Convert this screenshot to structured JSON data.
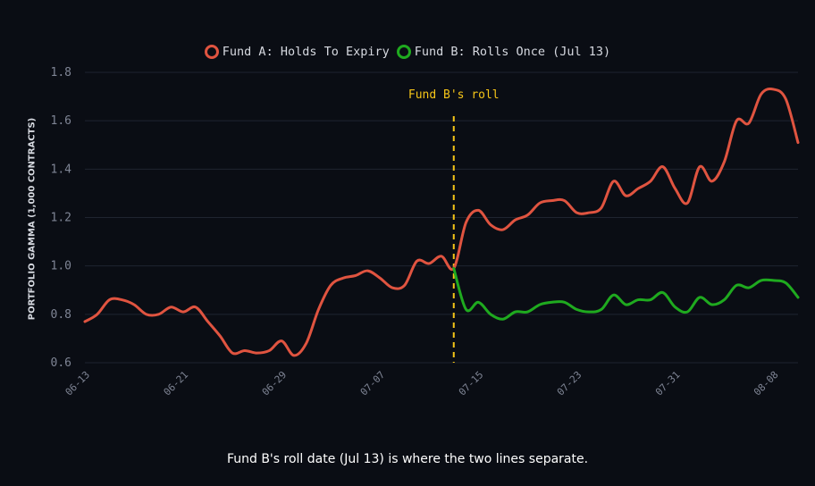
{
  "chart_data": {
    "type": "line",
    "xlabel": "",
    "ylabel": "PORTFOLIO GAMMA (1,000 CONTRACTS)",
    "ylim": [
      0.6,
      1.8
    ],
    "yticks": [
      "0.6",
      "0.8",
      "1.0",
      "1.2",
      "1.4",
      "1.6",
      "1.8"
    ],
    "x_range": [
      "06-13",
      "08-10"
    ],
    "x_tick_labels": [
      "06-13",
      "06-21",
      "06-29",
      "07-07",
      "07-15",
      "07-23",
      "07-31",
      "08-08"
    ],
    "grid": "horizontal",
    "legend_position": "top-center",
    "annotation": {
      "text": "Fund B's roll",
      "x": "07-13",
      "color": "#f5c518"
    },
    "series": [
      {
        "name": "Fund A: Holds To Expiry",
        "color": "#e05440",
        "x": [
          "06-13",
          "06-14",
          "06-15",
          "06-16",
          "06-17",
          "06-18",
          "06-19",
          "06-20",
          "06-21",
          "06-22",
          "06-23",
          "06-24",
          "06-25",
          "06-26",
          "06-27",
          "06-28",
          "06-29",
          "06-30",
          "07-01",
          "07-02",
          "07-03",
          "07-04",
          "07-05",
          "07-06",
          "07-07",
          "07-08",
          "07-09",
          "07-10",
          "07-11",
          "07-12",
          "07-13",
          "07-14",
          "07-15",
          "07-16",
          "07-17",
          "07-18",
          "07-19",
          "07-20",
          "07-21",
          "07-22",
          "07-23",
          "07-24",
          "07-25",
          "07-26",
          "07-27",
          "07-28",
          "07-29",
          "07-30",
          "07-31",
          "08-01",
          "08-02",
          "08-03",
          "08-04",
          "08-05",
          "08-06",
          "08-07",
          "08-08",
          "08-09",
          "08-10"
        ],
        "values": [
          0.77,
          0.8,
          0.86,
          0.86,
          0.84,
          0.8,
          0.8,
          0.83,
          0.81,
          0.83,
          0.77,
          0.71,
          0.64,
          0.65,
          0.64,
          0.65,
          0.69,
          0.63,
          0.68,
          0.82,
          0.92,
          0.95,
          0.96,
          0.98,
          0.95,
          0.91,
          0.92,
          1.02,
          1.01,
          1.04,
          0.99,
          1.18,
          1.23,
          1.17,
          1.15,
          1.19,
          1.21,
          1.26,
          1.27,
          1.27,
          1.22,
          1.22,
          1.24,
          1.35,
          1.29,
          1.32,
          1.35,
          1.41,
          1.32,
          1.26,
          1.41,
          1.35,
          1.43,
          1.6,
          1.59,
          1.71,
          1.73,
          1.69,
          1.51
        ]
      },
      {
        "name": "Fund B: Rolls Once (Jul 13)",
        "color": "#1faa1f",
        "x": [
          "07-13",
          "07-14",
          "07-15",
          "07-16",
          "07-17",
          "07-18",
          "07-19",
          "07-20",
          "07-21",
          "07-22",
          "07-23",
          "07-24",
          "07-25",
          "07-26",
          "07-27",
          "07-28",
          "07-29",
          "07-30",
          "07-31",
          "08-01",
          "08-02",
          "08-03",
          "08-04",
          "08-05",
          "08-06",
          "08-07",
          "08-08",
          "08-09",
          "08-10"
        ],
        "values": [
          0.99,
          0.82,
          0.85,
          0.8,
          0.78,
          0.81,
          0.81,
          0.84,
          0.85,
          0.85,
          0.82,
          0.81,
          0.82,
          0.88,
          0.84,
          0.86,
          0.86,
          0.89,
          0.83,
          0.81,
          0.87,
          0.84,
          0.86,
          0.92,
          0.91,
          0.94,
          0.94,
          0.93,
          0.87
        ]
      }
    ]
  },
  "caption": "Fund B's roll date (Jul 13) is where the two lines separate."
}
